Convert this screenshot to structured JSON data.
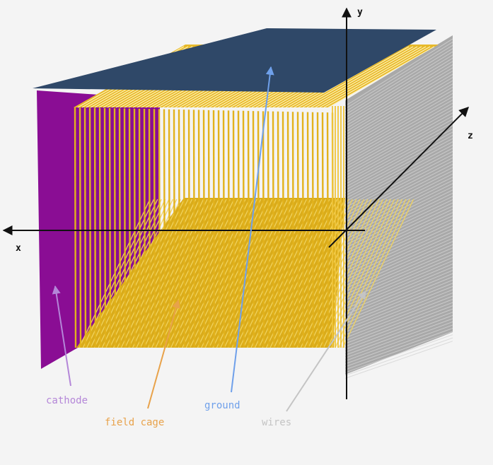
{
  "axes": {
    "x": "x",
    "y": "y",
    "z": "z"
  },
  "labels": {
    "cathode": "cathode",
    "field_cage": "field cage",
    "ground": "ground",
    "wires": "wires"
  },
  "colors": {
    "background": "#f4f4f4",
    "cathode": "#8a0d94",
    "field_cage": "#e0b21c",
    "ground_plane": "#2f4868",
    "wire_plane": "#a4a4a4",
    "cathode_label": "#b486d8",
    "field_cage_label": "#e8a24a",
    "ground_label": "#6fa0ea",
    "wires_label": "#c4c4c4"
  }
}
